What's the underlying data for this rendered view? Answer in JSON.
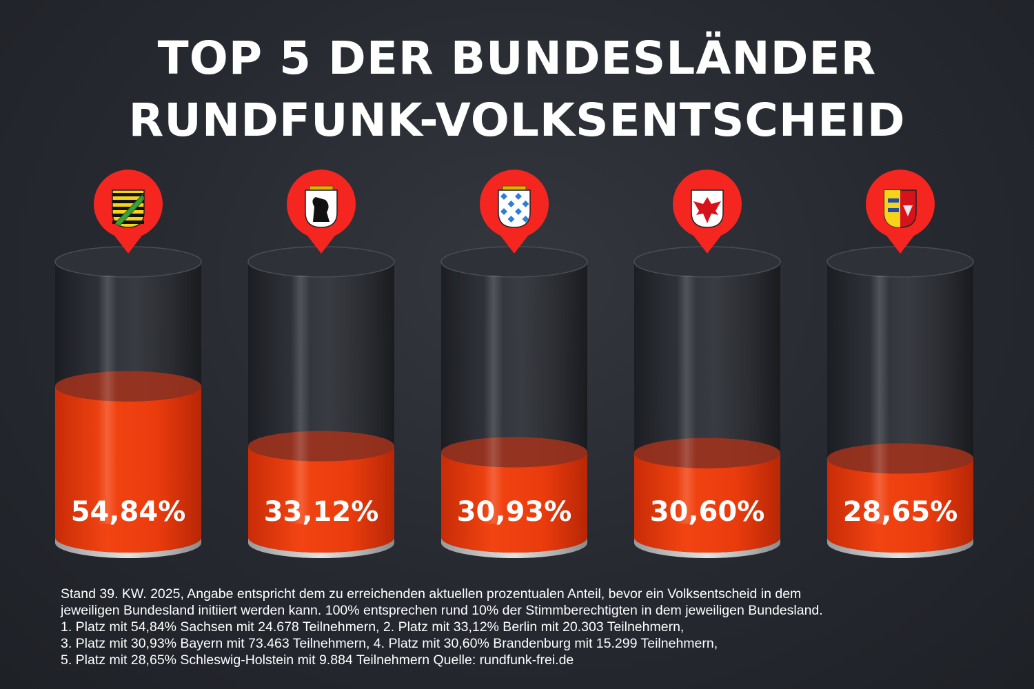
{
  "header": {
    "title_line1": "TOP 5  DER BUNDESLÄNDER",
    "title_line2": "RUNDFUNK-VOLKSENTSCHEID"
  },
  "colors": {
    "background": "#262930",
    "fill": "#e8380d",
    "marker": "#f5251f",
    "text": "#ffffff"
  },
  "chart_data": {
    "type": "bar",
    "title": "TOP 5  DER BUNDESLÄNDER RUNDFUNK-VOLKSENTSCHEID",
    "categories": [
      "Sachsen",
      "Berlin",
      "Bayern",
      "Brandenburg",
      "Schleswig-Holstein"
    ],
    "values": [
      54.84,
      33.12,
      30.93,
      30.6,
      28.65
    ],
    "value_labels": [
      "54,84%",
      "33,12%",
      "30,93%",
      "30,60%",
      "28,65%"
    ],
    "icons": [
      "saxony-coat-of-arms-icon",
      "berlin-coat-of-arms-icon",
      "bavaria-coat-of-arms-icon",
      "brandenburg-coat-of-arms-icon",
      "schleswig-holstein-coat-of-arms-icon"
    ],
    "ylim": [
      0,
      100
    ]
  },
  "footer": {
    "lines": [
      "Stand 39. KW. 2025, Angabe entspricht dem zu erreichenden aktuellen prozentualen Anteil, bevor ein Volksentscheid in dem",
      "jeweiligen Bundesland initiiert werden kann. 100% entsprechen rund 10% der Stimmberechtigten in dem jeweiligen Bundesland.",
      "1. Platz mit 54,84% Sachsen mit 24.678 Teilnehmern, 2. Platz mit 33,12% Berlin mit 20.303 Teilnehmern,",
      "3. Platz mit 30,93% Bayern mit 73.463 Teilnehmern, 4. Platz mit 30,60% Brandenburg mit 15.299 Teilnehmern,",
      "5. Platz mit 28,65% Schleswig-Holstein mit 9.884 Teilnehmern Quelle: rundfunk-frei.de"
    ]
  }
}
